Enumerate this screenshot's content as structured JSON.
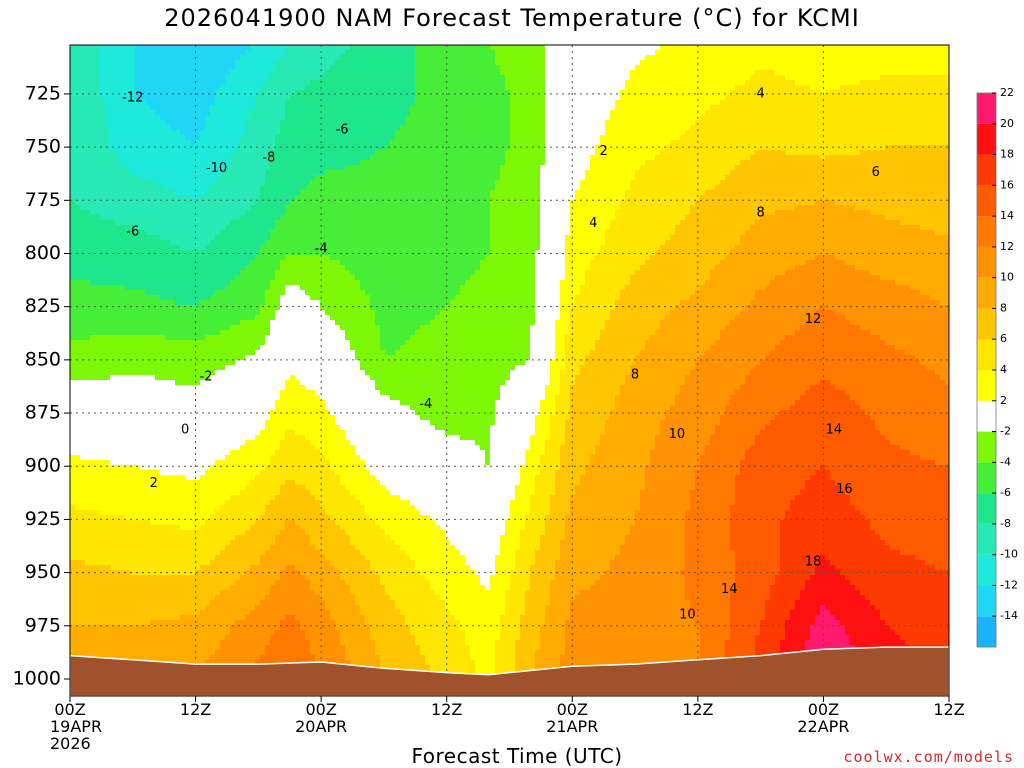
{
  "chart_data": {
    "type": "heatmap",
    "subtype": "time-pressure cross-section with filled temperature contours",
    "title": "2026041900 NAM Forecast Temperature (°C) for KCMI",
    "xlabel": "Forecast Time (UTC)",
    "ylabel": "",
    "x_ticks": [
      {
        "hour": 0,
        "label": [
          "00Z",
          "19APR",
          "2026"
        ]
      },
      {
        "hour": 12,
        "label": [
          "12Z"
        ]
      },
      {
        "hour": 24,
        "label": [
          "00Z",
          "20APR"
        ]
      },
      {
        "hour": 36,
        "label": [
          "12Z"
        ]
      },
      {
        "hour": 48,
        "label": [
          "00Z",
          "21APR"
        ]
      },
      {
        "hour": 60,
        "label": [
          "12Z"
        ]
      },
      {
        "hour": 72,
        "label": [
          "00Z",
          "22APR"
        ]
      },
      {
        "hour": 84,
        "label": [
          "12Z"
        ]
      }
    ],
    "x_range_hours": [
      0,
      84
    ],
    "y_ticks": [
      725,
      750,
      775,
      800,
      825,
      850,
      875,
      900,
      925,
      950,
      975,
      1000
    ],
    "y_range_hPa": [
      702,
      1008
    ],
    "y_inverted": true,
    "grid": "dotted",
    "colorbar": {
      "placement": "right",
      "levels": [
        -16,
        -14,
        -12,
        -10,
        -8,
        -6,
        -4,
        -2,
        2,
        4,
        6,
        8,
        10,
        12,
        14,
        16,
        18,
        20,
        22,
        24
      ],
      "tick_labels": [
        "-14",
        "-12",
        "-10",
        "-8",
        "-6",
        "-4",
        "-2",
        "2",
        "4",
        "6",
        "8",
        "10",
        "12",
        "14",
        "16",
        "18",
        "20",
        "22"
      ],
      "colors": [
        "#19b3ff",
        "#1fd7f5",
        "#1eeadc",
        "#27e9b6",
        "#1fe68c",
        "#47ee38",
        "#7cf806",
        "#ffffff",
        "#ffff00",
        "#ffe600",
        "#ffc500",
        "#ffab00",
        "#ff9200",
        "#ff7800",
        "#ff5a00",
        "#ff3a00",
        "#ff1010",
        "#ff1a6e"
      ]
    },
    "terrain_color": "#a0522d",
    "surface_pressure_hPa": [
      [
        0,
        989
      ],
      [
        6,
        991
      ],
      [
        12,
        993
      ],
      [
        18,
        993
      ],
      [
        24,
        992
      ],
      [
        30,
        995
      ],
      [
        36,
        997
      ],
      [
        40,
        998
      ],
      [
        44,
        996
      ],
      [
        48,
        994
      ],
      [
        54,
        993
      ],
      [
        60,
        991
      ],
      [
        66,
        989
      ],
      [
        72,
        986
      ],
      [
        78,
        985
      ],
      [
        84,
        985
      ]
    ],
    "profiles": [
      {
        "hour": 0,
        "temp_by_level": {
          "700": -8,
          "725": -8,
          "750": -8,
          "775": -8,
          "800": -7,
          "825": -5,
          "850": -3.5,
          "875": 0,
          "900": 2.5,
          "925": 4.5,
          "950": 6.5,
          "975": 8,
          "1000": 9
        }
      },
      {
        "hour": 6,
        "temp_by_level": {
          "700": -12,
          "725": -12,
          "750": -11,
          "775": -9,
          "800": -7,
          "825": -5.5,
          "850": -2.5,
          "875": -0.5,
          "900": 2,
          "925": 4,
          "950": 6,
          "975": 8,
          "1000": 9.5
        }
      },
      {
        "hour": 12,
        "temp_by_level": {
          "700": -14,
          "725": -13,
          "750": -12,
          "775": -10,
          "800": -8,
          "825": -6,
          "850": -3,
          "875": -1,
          "900": 1.5,
          "925": 3.5,
          "950": 6,
          "975": 8.5,
          "1000": 10
        }
      },
      {
        "hour": 18,
        "temp_by_level": {
          "700": -12,
          "725": -10,
          "750": -9,
          "775": -8,
          "800": -6,
          "825": -4.5,
          "850": -1.5,
          "875": 1,
          "900": 3.5,
          "925": 6,
          "950": 8.5,
          "975": 11,
          "1000": 12.5
        }
      },
      {
        "hour": 21,
        "temp_by_level": {
          "700": -10,
          "725": -8,
          "750": -7,
          "775": -6,
          "800": -4,
          "825": -0.5,
          "850": 1.5,
          "875": 3.5,
          "900": 5.5,
          "925": 8,
          "950": 10.5,
          "975": 12.5,
          "1000": 14
        }
      },
      {
        "hour": 24,
        "temp_by_level": {
          "700": -9,
          "725": -7.5,
          "750": -6.5,
          "775": -5.5,
          "800": -4,
          "825": -2,
          "850": 0.5,
          "875": 2.5,
          "900": 4.5,
          "925": 6.5,
          "950": 9,
          "975": 11,
          "1000": 12
        }
      },
      {
        "hour": 30,
        "temp_by_level": {
          "700": -7,
          "725": -6.5,
          "750": -6,
          "775": -5.5,
          "800": -5,
          "825": -4.5,
          "850": -4,
          "875": -1,
          "900": 1,
          "925": 3.5,
          "950": 5.5,
          "975": 7,
          "1000": 8
        }
      },
      {
        "hour": 36,
        "temp_by_level": {
          "700": -5,
          "725": -5.5,
          "750": -5.5,
          "775": -5,
          "800": -4.5,
          "825": -4,
          "850": -3.5,
          "875": -3,
          "900": -0.5,
          "925": 1.5,
          "950": 3,
          "975": 4.5,
          "1000": 5.5
        }
      },
      {
        "hour": 40,
        "temp_by_level": {
          "700": -4,
          "725": -4.5,
          "750": -4.5,
          "775": -4,
          "800": -4,
          "825": -3.5,
          "850": -3,
          "875": -2.5,
          "900": -2,
          "925": 0,
          "950": 1.5,
          "975": 3,
          "1000": 3.5
        }
      },
      {
        "hour": 44,
        "temp_by_level": {
          "700": -3,
          "725": -3.5,
          "750": -3.5,
          "775": -3,
          "800": -3,
          "825": -2.5,
          "850": -2,
          "875": 1,
          "900": 3,
          "925": 4.5,
          "950": 6,
          "975": 7,
          "1000": 8
        }
      },
      {
        "hour": 48,
        "temp_by_level": {
          "700": 0,
          "725": 0.5,
          "750": 1,
          "775": 2,
          "800": 3,
          "825": 4,
          "850": 5.5,
          "875": 6.5,
          "900": 7.5,
          "925": 8.5,
          "950": 9.5,
          "975": 10.5,
          "1000": 11
        }
      },
      {
        "hour": 54,
        "temp_by_level": {
          "700": 1.5,
          "725": 2.5,
          "750": 3.5,
          "775": 4.5,
          "800": 5.5,
          "825": 7,
          "850": 8,
          "875": 9,
          "900": 9.5,
          "925": 10,
          "950": 10.5,
          "975": 11,
          "1000": 11.5
        }
      },
      {
        "hour": 60,
        "temp_by_level": {
          "700": 2.5,
          "725": 3.5,
          "750": 4.5,
          "775": 6,
          "800": 7,
          "825": 8.5,
          "850": 10,
          "875": 11,
          "900": 12,
          "925": 12.5,
          "950": 12.5,
          "975": 12,
          "1000": 12
        }
      },
      {
        "hour": 66,
        "temp_by_level": {
          "700": 3.5,
          "725": 4.5,
          "750": 6,
          "775": 7.5,
          "800": 9,
          "825": 10.5,
          "850": 12,
          "875": 13.5,
          "900": 15,
          "925": 15.5,
          "950": 15,
          "975": 16,
          "1000": 17
        }
      },
      {
        "hour": 72,
        "temp_by_level": {
          "700": 3,
          "725": 4,
          "750": 5.5,
          "775": 8,
          "800": 10,
          "825": 12,
          "850": 13.5,
          "875": 15,
          "900": 16,
          "925": 17,
          "950": 18.5,
          "975": 21,
          "1000": 22
        }
      },
      {
        "hour": 78,
        "temp_by_level": {
          "700": 3,
          "725": 4.5,
          "750": 6,
          "775": 7.5,
          "800": 9,
          "825": 11,
          "850": 12.5,
          "875": 13.5,
          "900": 14.5,
          "925": 15.5,
          "950": 16.5,
          "975": 18,
          "1000": 19
        }
      },
      {
        "hour": 84,
        "temp_by_level": {
          "700": 3,
          "725": 4.5,
          "750": 6,
          "775": 7,
          "800": 8.5,
          "825": 10,
          "850": 11.5,
          "875": 12.5,
          "900": 14,
          "925": 15,
          "950": 16,
          "975": 17,
          "1000": 18
        }
      }
    ],
    "contour_labels": [
      {
        "hour": 6,
        "p": 727,
        "text": "-12"
      },
      {
        "hour": 14,
        "p": 760,
        "text": "-10"
      },
      {
        "hour": 19,
        "p": 755,
        "text": "-8"
      },
      {
        "hour": 6,
        "p": 790,
        "text": "-6"
      },
      {
        "hour": 26,
        "p": 742,
        "text": "-6"
      },
      {
        "hour": 24,
        "p": 798,
        "text": "-4"
      },
      {
        "hour": 34,
        "p": 871,
        "text": "-4"
      },
      {
        "hour": 13,
        "p": 858,
        "text": "-2"
      },
      {
        "hour": 11,
        "p": 883,
        "text": "0"
      },
      {
        "hour": 8,
        "p": 908,
        "text": "2"
      },
      {
        "hour": 51,
        "p": 752,
        "text": "2"
      },
      {
        "hour": 50,
        "p": 786,
        "text": "4"
      },
      {
        "hour": 66,
        "p": 725,
        "text": "4"
      },
      {
        "hour": 77,
        "p": 762,
        "text": "6"
      },
      {
        "hour": 66,
        "p": 781,
        "text": "8"
      },
      {
        "hour": 54,
        "p": 857,
        "text": "8"
      },
      {
        "hour": 58,
        "p": 885,
        "text": "10"
      },
      {
        "hour": 59,
        "p": 970,
        "text": "10"
      },
      {
        "hour": 71,
        "p": 831,
        "text": "12"
      },
      {
        "hour": 73,
        "p": 883,
        "text": "14"
      },
      {
        "hour": 63,
        "p": 958,
        "text": "14"
      },
      {
        "hour": 74,
        "p": 911,
        "text": "16"
      },
      {
        "hour": 71,
        "p": 945,
        "text": "18"
      }
    ]
  },
  "footer": {
    "watermark": "coolwx.com/models"
  }
}
